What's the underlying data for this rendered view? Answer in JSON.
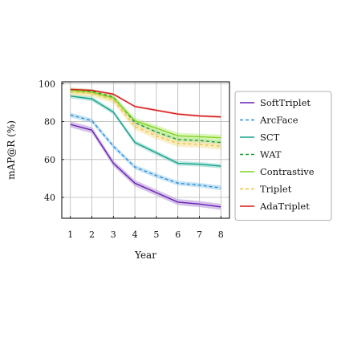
{
  "chart_data": {
    "type": "line",
    "xlabel": "Year",
    "ylabel": "mAP@R (%)",
    "x": [
      1,
      2,
      3,
      4,
      5,
      6,
      7,
      8
    ],
    "xlim": [
      0.6,
      8.4
    ],
    "ylim": [
      29,
      101
    ],
    "yticks": [
      40,
      60,
      80,
      100
    ],
    "grid": true,
    "legend_position": "right (outside plot)",
    "series": [
      {
        "name": "SoftTriplet",
        "color": "#6a1fb5",
        "dash": "solid",
        "band_color": "#b79ad8",
        "values": [
          78.5,
          75.5,
          58.0,
          47.5,
          42.5,
          37.5,
          36.5,
          35.0
        ],
        "band": 1.6
      },
      {
        "name": "ArcFace",
        "color": "#2f8fd6",
        "dash": "dashed",
        "band_color": "#9fd0ef",
        "values": [
          83.5,
          80.5,
          67.0,
          56.0,
          51.5,
          47.5,
          46.5,
          45.0
        ],
        "band": 1.2
      },
      {
        "name": "SCT",
        "color": "#16a08a",
        "dash": "solid",
        "band_color": "#8ed9cc",
        "values": [
          93.5,
          92.0,
          85.0,
          69.0,
          63.5,
          58.0,
          57.5,
          56.5
        ],
        "band": 1.2
      },
      {
        "name": "WAT",
        "color": "#1f9a2f",
        "dash": "dashed",
        "band_color": "#9fdf9a",
        "values": [
          96.5,
          96.0,
          93.0,
          79.5,
          74.5,
          70.5,
          70.0,
          69.0
        ],
        "band": 1.2
      },
      {
        "name": "Contrastive",
        "color": "#7ed321",
        "dash": "solid",
        "band_color": "#c5f08e",
        "values": [
          96.5,
          95.5,
          92.5,
          80.5,
          76.5,
          72.5,
          72.0,
          71.5
        ],
        "band": 1.6
      },
      {
        "name": "Triplet",
        "color": "#f2c23a",
        "dash": "dashed",
        "band_color": "#f7e3a4",
        "values": [
          95.5,
          95.0,
          91.5,
          77.5,
          72.5,
          68.5,
          68.0,
          67.0
        ],
        "band": 1.8
      },
      {
        "name": "AdaTriplet",
        "color": "#d81b1b",
        "dash": "solid",
        "band_color": "#f0a0a0",
        "values": [
          97.0,
          96.5,
          94.5,
          88.0,
          86.0,
          84.0,
          83.0,
          82.5
        ],
        "band": 0.6
      }
    ]
  }
}
